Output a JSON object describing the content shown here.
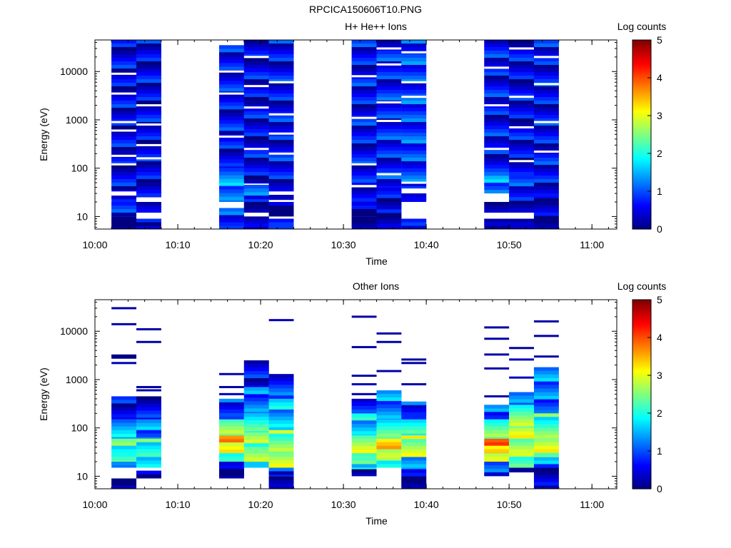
{
  "figure_title": "RPCICA150606T10.PNG",
  "chart_data": [
    {
      "type": "heatmap",
      "title": "H+ He++ Ions",
      "xlabel": "Time",
      "ylabel": "Energy (eV)",
      "colorbar_label": "Log counts",
      "colorbar_ticks": [
        "0",
        "1",
        "2",
        "3",
        "4",
        "5"
      ],
      "color_range": [
        0,
        5
      ],
      "xticks": [
        "10:00",
        "10:10",
        "10:20",
        "10:30",
        "10:40",
        "10:50",
        "11:00"
      ],
      "xlim": [
        "10:00",
        "11:03"
      ],
      "ylim": [
        5.5,
        45000
      ],
      "yscale": "log",
      "yticks": [
        "10",
        "100",
        "1000",
        "10000"
      ],
      "colormap": "jet",
      "columns": [
        {
          "start": "10:02",
          "end": "10:05",
          "segments": [
            [
              5.5,
              10,
              0.1
            ],
            [
              10,
              20,
              0.6
            ],
            [
              20,
              27,
              0.8
            ],
            [
              33,
              45000,
              0.5
            ]
          ],
          "gaps": [
            120,
            180,
            600,
            900,
            3500,
            9000
          ]
        },
        {
          "start": "10:05",
          "end": "10:08",
          "segments": [
            [
              5.5,
              9,
              0.4
            ],
            [
              12,
              20,
              0.3
            ],
            [
              25,
              45000,
              0.5
            ]
          ],
          "gaps": [
            160,
            300,
            800,
            2000
          ]
        },
        {
          "start": "10:15",
          "end": "10:18",
          "segments": [
            [
              5.5,
              15,
              0.9
            ],
            [
              20,
              100,
              1.2
            ],
            [
              100,
              35000,
              0.6
            ]
          ],
          "gaps": [
            450,
            3500,
            10000
          ]
        },
        {
          "start": "10:18",
          "end": "10:21",
          "segments": [
            [
              5.5,
              10,
              0.2
            ],
            [
              12,
              20,
              0.4
            ],
            [
              20,
              45,
              0.9
            ],
            [
              48,
              45000,
              0.5
            ]
          ],
          "gaps": [
            250,
            1800,
            5000,
            20000
          ]
        },
        {
          "start": "10:21",
          "end": "10:24",
          "segments": [
            [
              5.5,
              9,
              0.9
            ],
            [
              10,
              20,
              0.1
            ],
            [
              22,
              28,
              0.4
            ],
            [
              33,
              45000,
              0.6
            ]
          ],
          "gaps": [
            200,
            520,
            1300,
            6000
          ]
        },
        {
          "start": "10:31",
          "end": "10:34",
          "segments": [
            [
              5.5,
              10,
              0.2
            ],
            [
              10,
              20,
              0.3
            ],
            [
              20,
              40,
              0.5
            ],
            [
              45,
              45000,
              0.6
            ]
          ],
          "gaps": [
            120,
            1100,
            8000
          ]
        },
        {
          "start": "10:34",
          "end": "10:37",
          "segments": [
            [
              5.5,
              14,
              0.3
            ],
            [
              14,
              40,
              0.5
            ],
            [
              40,
              45000,
              0.7
            ]
          ],
          "gaps": [
            75,
            950,
            2300,
            14000,
            30000
          ]
        },
        {
          "start": "10:37",
          "end": "10:40",
          "segments": [
            [
              5.5,
              9,
              0.4
            ],
            [
              20,
              30,
              0.6
            ],
            [
              38,
              45000,
              0.9
            ]
          ],
          "gaps": [
            50,
            3000,
            6000,
            25000
          ]
        },
        {
          "start": "10:47",
          "end": "10:50",
          "segments": [
            [
              5.5,
              9,
              0.1
            ],
            [
              12,
              20,
              0.4
            ],
            [
              30,
              70,
              1.3
            ],
            [
              70,
              45000,
              0.6
            ]
          ],
          "gaps": [
            250,
            2000,
            12000
          ]
        },
        {
          "start": "10:50",
          "end": "10:53",
          "segments": [
            [
              5.5,
              9,
              0.3
            ],
            [
              12,
              25,
              0.4
            ],
            [
              25,
              70,
              0.8
            ],
            [
              70,
              45000,
              0.5
            ]
          ],
          "gaps": [
            140,
            700,
            3000,
            30000
          ]
        },
        {
          "start": "10:53",
          "end": "10:56",
          "segments": [
            [
              5.5,
              24,
              0.2
            ],
            [
              24,
              45000,
              0.6
            ]
          ],
          "gaps": [
            220,
            900,
            5500,
            20000
          ]
        }
      ]
    },
    {
      "type": "heatmap",
      "title": "Other Ions",
      "xlabel": "Time",
      "ylabel": "Energy (eV)",
      "colorbar_label": "Log counts",
      "colorbar_ticks": [
        "0",
        "1",
        "2",
        "3",
        "4",
        "5"
      ],
      "color_range": [
        0,
        5
      ],
      "xticks": [
        "10:00",
        "10:10",
        "10:20",
        "10:30",
        "10:40",
        "10:50",
        "11:00"
      ],
      "xlim": [
        "10:00",
        "11:03"
      ],
      "ylim": [
        5.5,
        45000
      ],
      "yscale": "log",
      "yticks": [
        "10",
        "100",
        "1000",
        "10000"
      ],
      "colormap": "jet",
      "columns": [
        {
          "start": "10:02",
          "end": "10:05",
          "segments": [
            [
              5.5,
              9,
              0.3
            ],
            [
              15,
              20,
              1.2
            ],
            [
              20,
              30,
              2.4
            ],
            [
              30,
              60,
              2.2
            ],
            [
              60,
              150,
              1.4
            ],
            [
              150,
              450,
              0.5
            ],
            [
              2700,
              3300,
              0.2
            ]
          ],
          "lines": [
            [
              2200,
              0.3
            ],
            [
              14000,
              0.2
            ],
            [
              30000,
              0.2
            ]
          ]
        },
        {
          "start": "10:05",
          "end": "10:08",
          "segments": [
            [
              9,
              13,
              0.2
            ],
            [
              15,
              25,
              1.6
            ],
            [
              25,
              60,
              2.0
            ],
            [
              60,
              150,
              1.3
            ],
            [
              150,
              450,
              0.5
            ]
          ],
          "lines": [
            [
              600,
              0.2
            ],
            [
              700,
              0.2
            ],
            [
              6000,
              0.2
            ],
            [
              11000,
              0.2
            ]
          ]
        },
        {
          "start": "10:15",
          "end": "10:18",
          "segments": [
            [
              9,
              20,
              0.2
            ],
            [
              20,
              30,
              2.2
            ],
            [
              30,
              70,
              3.3
            ],
            [
              70,
              150,
              2.4
            ],
            [
              150,
              400,
              0.9
            ]
          ],
          "lines": [
            [
              500,
              0.3
            ],
            [
              700,
              0.2
            ],
            [
              1300,
              0.2
            ]
          ]
        },
        {
          "start": "10:18",
          "end": "10:21",
          "segments": [
            [
              15,
              20,
              1.6
            ],
            [
              20,
              35,
              3.0
            ],
            [
              35,
              80,
              2.4
            ],
            [
              80,
              200,
              2.0
            ],
            [
              200,
              700,
              1.2
            ],
            [
              700,
              2500,
              0.5
            ]
          ],
          "lines": []
        },
        {
          "start": "10:21",
          "end": "10:24",
          "segments": [
            [
              5.5,
              10,
              0.2
            ],
            [
              10,
              15,
              0.8
            ],
            [
              15,
              30,
              2.6
            ],
            [
              30,
              90,
              2.4
            ],
            [
              90,
              400,
              1.6
            ],
            [
              400,
              1300,
              0.8
            ]
          ],
          "lines": [
            [
              17000,
              0.3
            ]
          ]
        },
        {
          "start": "10:31",
          "end": "10:34",
          "segments": [
            [
              10,
              14,
              0.3
            ],
            [
              14,
              25,
              2.0
            ],
            [
              25,
              70,
              2.6
            ],
            [
              70,
              200,
              1.6
            ],
            [
              200,
              400,
              0.6
            ]
          ],
          "lines": [
            [
              500,
              0.3
            ],
            [
              800,
              0.3
            ],
            [
              1200,
              0.2
            ],
            [
              4700,
              0.2
            ],
            [
              20000,
              0.2
            ]
          ]
        },
        {
          "start": "10:34",
          "end": "10:37",
          "segments": [
            [
              15,
              25,
              2.2
            ],
            [
              25,
              60,
              3.2
            ],
            [
              60,
              150,
              2.2
            ],
            [
              150,
              600,
              1.2
            ]
          ],
          "lines": [
            [
              1500,
              0.2
            ],
            [
              6000,
              0.2
            ],
            [
              9000,
              0.2
            ]
          ]
        },
        {
          "start": "10:37",
          "end": "10:40",
          "segments": [
            [
              5.5,
              14,
              0.2
            ],
            [
              14,
              25,
              1.4
            ],
            [
              25,
              70,
              2.8
            ],
            [
              70,
              150,
              1.8
            ],
            [
              150,
              350,
              0.8
            ]
          ],
          "lines": [
            [
              800,
              0.2
            ],
            [
              2200,
              0.2
            ],
            [
              2600,
              0.2
            ]
          ]
        },
        {
          "start": "10:47",
          "end": "10:50",
          "segments": [
            [
              10,
              20,
              0.8
            ],
            [
              20,
              30,
              3.2
            ],
            [
              30,
              60,
              3.7
            ],
            [
              60,
              150,
              2.2
            ],
            [
              150,
              300,
              1.0
            ]
          ],
          "lines": [
            [
              450,
              0.2
            ],
            [
              1700,
              0.2
            ],
            [
              3300,
              0.2
            ],
            [
              7000,
              0.2
            ],
            [
              12000,
              0.2
            ]
          ]
        },
        {
          "start": "10:50",
          "end": "10:53",
          "segments": [
            [
              12,
              15,
              0.2
            ],
            [
              15,
              30,
              2.4
            ],
            [
              30,
              100,
              2.8
            ],
            [
              100,
              300,
              2.4
            ],
            [
              300,
              550,
              1.0
            ]
          ],
          "lines": [
            [
              1100,
              0.3
            ],
            [
              2600,
              0.3
            ],
            [
              4500,
              0.2
            ]
          ]
        },
        {
          "start": "10:53",
          "end": "10:56",
          "segments": [
            [
              5.5,
              15,
              0.2
            ],
            [
              15,
              25,
              1.2
            ],
            [
              25,
              60,
              2.8
            ],
            [
              60,
              200,
              2.2
            ],
            [
              200,
              1800,
              1.2
            ]
          ],
          "lines": [
            [
              3000,
              0.2
            ],
            [
              8000,
              0.2
            ],
            [
              16000,
              0.2
            ]
          ]
        }
      ]
    }
  ]
}
